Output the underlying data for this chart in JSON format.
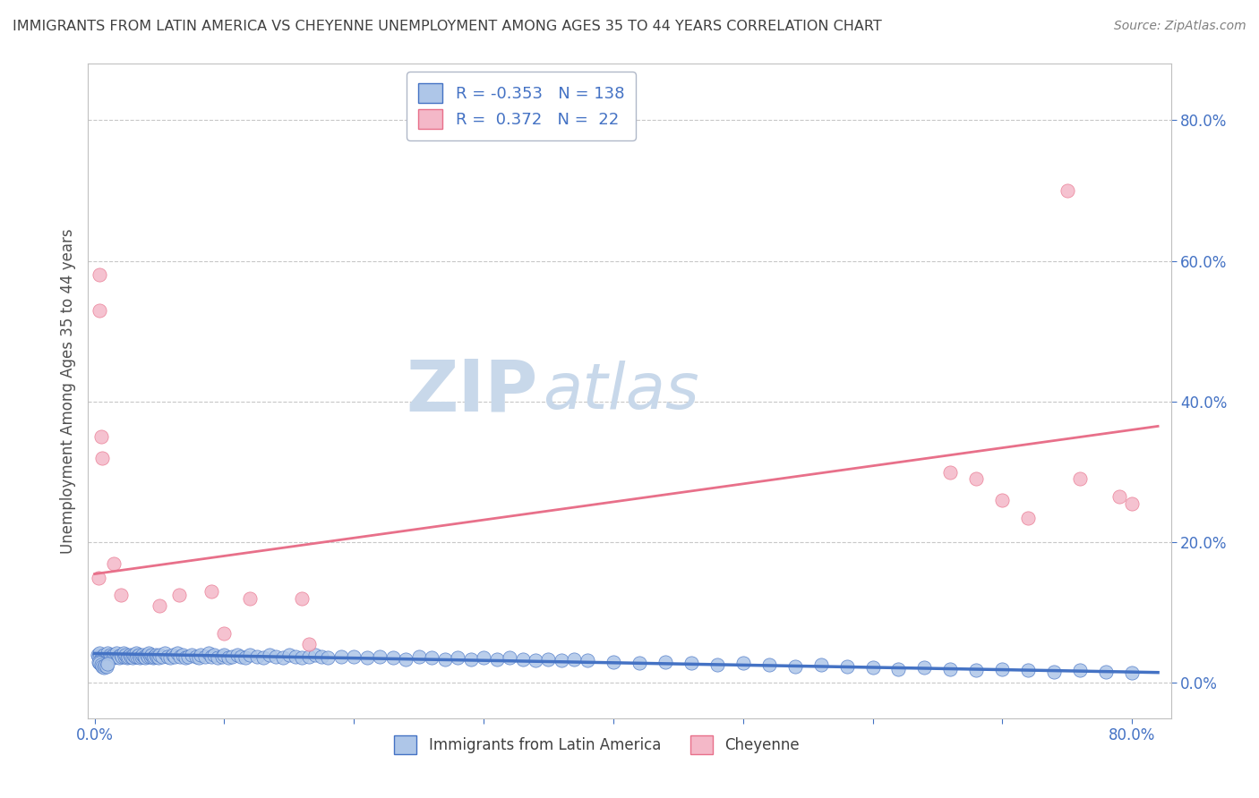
{
  "title": "IMMIGRANTS FROM LATIN AMERICA VS CHEYENNE UNEMPLOYMENT AMONG AGES 35 TO 44 YEARS CORRELATION CHART",
  "source": "Source: ZipAtlas.com",
  "xlabel_legend1": "Immigrants from Latin America",
  "xlabel_legend2": "Cheyenne",
  "ylabel": "Unemployment Among Ages 35 to 44 years",
  "xlim": [
    -0.005,
    0.83
  ],
  "ylim": [
    -0.05,
    0.88
  ],
  "xticks": [
    0.0,
    0.1,
    0.2,
    0.3,
    0.4,
    0.5,
    0.6,
    0.7,
    0.8
  ],
  "yticks": [
    0.0,
    0.2,
    0.4,
    0.6,
    0.8
  ],
  "blue_R": -0.353,
  "blue_N": 138,
  "pink_R": 0.372,
  "pink_N": 22,
  "blue_color": "#aec6e8",
  "pink_color": "#f4b8c8",
  "blue_line_color": "#4472c4",
  "pink_line_color": "#e8708a",
  "legend_color": "#4472c4",
  "watermark_zip": "ZIP",
  "watermark_atlas": "atlas",
  "watermark_color": "#c8d8ea",
  "background_color": "#ffffff",
  "grid_color": "#c8c8c8",
  "title_color": "#404040",
  "axis_label_color": "#505050",
  "tick_color": "#4472c4",
  "blue_scatter_x": [
    0.002,
    0.003,
    0.004,
    0.005,
    0.006,
    0.007,
    0.008,
    0.009,
    0.01,
    0.011,
    0.012,
    0.013,
    0.014,
    0.015,
    0.016,
    0.017,
    0.018,
    0.019,
    0.02,
    0.021,
    0.022,
    0.023,
    0.024,
    0.025,
    0.026,
    0.027,
    0.028,
    0.029,
    0.03,
    0.031,
    0.032,
    0.033,
    0.034,
    0.035,
    0.036,
    0.037,
    0.038,
    0.039,
    0.04,
    0.041,
    0.042,
    0.043,
    0.044,
    0.045,
    0.046,
    0.047,
    0.048,
    0.049,
    0.05,
    0.052,
    0.054,
    0.056,
    0.058,
    0.06,
    0.062,
    0.064,
    0.066,
    0.068,
    0.07,
    0.072,
    0.075,
    0.078,
    0.08,
    0.082,
    0.085,
    0.088,
    0.09,
    0.092,
    0.095,
    0.098,
    0.1,
    0.103,
    0.106,
    0.11,
    0.113,
    0.116,
    0.12,
    0.125,
    0.13,
    0.135,
    0.14,
    0.145,
    0.15,
    0.155,
    0.16,
    0.165,
    0.17,
    0.175,
    0.18,
    0.19,
    0.2,
    0.21,
    0.22,
    0.23,
    0.24,
    0.25,
    0.26,
    0.27,
    0.28,
    0.29,
    0.3,
    0.31,
    0.32,
    0.33,
    0.34,
    0.35,
    0.36,
    0.37,
    0.38,
    0.4,
    0.42,
    0.44,
    0.46,
    0.48,
    0.5,
    0.52,
    0.54,
    0.56,
    0.58,
    0.6,
    0.62,
    0.64,
    0.66,
    0.68,
    0.7,
    0.72,
    0.74,
    0.76,
    0.78,
    0.8,
    0.003,
    0.004,
    0.005,
    0.006,
    0.007,
    0.008,
    0.009,
    0.01
  ],
  "blue_scatter_y": [
    0.04,
    0.038,
    0.042,
    0.035,
    0.038,
    0.04,
    0.036,
    0.038,
    0.042,
    0.038,
    0.04,
    0.038,
    0.036,
    0.04,
    0.038,
    0.042,
    0.038,
    0.036,
    0.04,
    0.038,
    0.042,
    0.038,
    0.04,
    0.036,
    0.038,
    0.04,
    0.038,
    0.036,
    0.04,
    0.038,
    0.042,
    0.038,
    0.04,
    0.036,
    0.038,
    0.04,
    0.038,
    0.036,
    0.04,
    0.038,
    0.042,
    0.038,
    0.04,
    0.036,
    0.038,
    0.04,
    0.038,
    0.036,
    0.04,
    0.038,
    0.042,
    0.038,
    0.036,
    0.04,
    0.038,
    0.042,
    0.038,
    0.04,
    0.036,
    0.038,
    0.04,
    0.038,
    0.036,
    0.04,
    0.038,
    0.042,
    0.038,
    0.04,
    0.036,
    0.038,
    0.04,
    0.036,
    0.038,
    0.04,
    0.038,
    0.036,
    0.04,
    0.038,
    0.036,
    0.04,
    0.038,
    0.036,
    0.04,
    0.038,
    0.036,
    0.038,
    0.04,
    0.038,
    0.036,
    0.038,
    0.038,
    0.036,
    0.038,
    0.036,
    0.034,
    0.038,
    0.036,
    0.034,
    0.036,
    0.034,
    0.036,
    0.034,
    0.036,
    0.034,
    0.032,
    0.034,
    0.032,
    0.034,
    0.032,
    0.03,
    0.028,
    0.03,
    0.028,
    0.026,
    0.028,
    0.026,
    0.024,
    0.026,
    0.024,
    0.022,
    0.02,
    0.022,
    0.02,
    0.018,
    0.02,
    0.018,
    0.016,
    0.018,
    0.016,
    0.014,
    0.03,
    0.028,
    0.026,
    0.024,
    0.022,
    0.025,
    0.023,
    0.027
  ],
  "pink_scatter_x": [
    0.003,
    0.004,
    0.004,
    0.005,
    0.006,
    0.015,
    0.02,
    0.05,
    0.065,
    0.09,
    0.1,
    0.12,
    0.16,
    0.165,
    0.66,
    0.68,
    0.7,
    0.72,
    0.75,
    0.76,
    0.79,
    0.8
  ],
  "pink_scatter_y": [
    0.15,
    0.58,
    0.53,
    0.35,
    0.32,
    0.17,
    0.125,
    0.11,
    0.125,
    0.13,
    0.07,
    0.12,
    0.12,
    0.055,
    0.3,
    0.29,
    0.26,
    0.235,
    0.7,
    0.29,
    0.265,
    0.255
  ],
  "blue_trendline_x": [
    0.0,
    0.82
  ],
  "blue_trendline_y": [
    0.042,
    0.015
  ],
  "pink_trendline_x": [
    0.0,
    0.82
  ],
  "pink_trendline_y": [
    0.155,
    0.365
  ]
}
